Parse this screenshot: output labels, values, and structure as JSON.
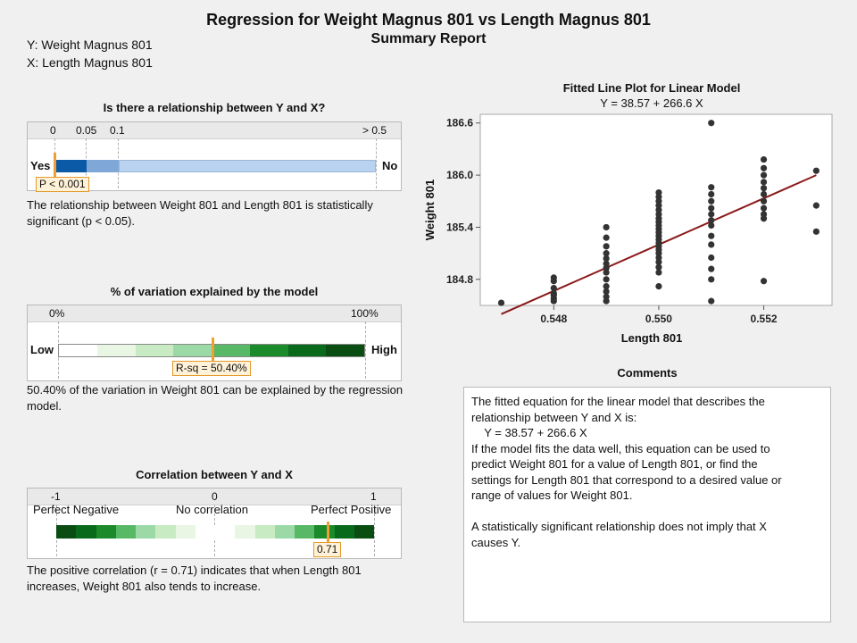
{
  "header": {
    "title": "Regression for Weight Magnus 801 vs Length Magnus 801",
    "subtitle": "Summary Report",
    "y_label": "Y: Weight Magnus 801",
    "x_label": "X: Length Magnus 801"
  },
  "relationship": {
    "title": "Is there a relationship between Y and X?",
    "ticks": [
      "0",
      "0.05",
      "0.1",
      "> 0.5"
    ],
    "left_label": "Yes",
    "right_label": "No",
    "callout": "P < 0.001",
    "p_value": 0.001,
    "colors": [
      "#0b5aa8",
      "#7fa8d8",
      "#b8d2ef"
    ],
    "description": "The relationship between Weight 801 and Length 801 is statistically significant (p < 0.05)."
  },
  "variation": {
    "title": "% of variation explained by the model",
    "ticks": [
      "0%",
      "100%"
    ],
    "left_label": "Low",
    "right_label": "High",
    "callout": "R-sq = 50.40%",
    "r_sq_percent": 50.4,
    "colors": [
      "#ffffff",
      "#e9f6e3",
      "#c8ebc4",
      "#9bdaa6",
      "#57b866",
      "#1a8a2a",
      "#0a6a1c",
      "#0a4d12"
    ],
    "description": "50.40% of the variation in Weight 801 can be explained by the regression model."
  },
  "correlation": {
    "title": "Correlation between Y and X",
    "ticks": [
      "-1",
      "0",
      "1"
    ],
    "labels": [
      "Perfect Negative",
      "No correlation",
      "Perfect Positive"
    ],
    "callout": "0.71",
    "r": 0.71,
    "colors": [
      "#0a4d12",
      "#0a6a1c",
      "#1a8a2a",
      "#57b866",
      "#9bdaa6",
      "#c8ebc4",
      "#e9f6e3",
      "#ffffff"
    ],
    "description": "The positive correlation (r = 0.71) indicates that when Length 801 increases, Weight 801 also tends to increase."
  },
  "plot": {
    "title": "Fitted Line Plot for Linear Model",
    "equation": "Y = 38.57 + 266.6 X",
    "line_color": "#8b1a1a",
    "point_color": "#333333"
  },
  "chart_data": {
    "type": "scatter",
    "title": "Fitted Line Plot for Linear Model",
    "subtitle": "Y = 38.57 + 266.6 X",
    "xlabel": "Length 801",
    "ylabel": "Weight 801",
    "xlim": [
      0.5466,
      0.5533
    ],
    "ylim": [
      184.5,
      186.7
    ],
    "xticks": [
      "0.548",
      "0.550",
      "0.552"
    ],
    "yticks": [
      "184.8",
      "185.4",
      "186.0",
      "186.6"
    ],
    "grid": false,
    "fit": {
      "intercept": 38.57,
      "slope": 266.6
    },
    "points": [
      [
        0.547,
        184.53
      ],
      [
        0.548,
        184.55
      ],
      [
        0.548,
        184.58
      ],
      [
        0.548,
        184.62
      ],
      [
        0.548,
        184.64
      ],
      [
        0.548,
        184.7
      ],
      [
        0.548,
        184.78
      ],
      [
        0.548,
        184.82
      ],
      [
        0.549,
        184.55
      ],
      [
        0.549,
        184.6
      ],
      [
        0.549,
        184.66
      ],
      [
        0.549,
        184.72
      ],
      [
        0.549,
        184.8
      ],
      [
        0.549,
        184.88
      ],
      [
        0.549,
        184.93
      ],
      [
        0.549,
        184.98
      ],
      [
        0.549,
        185.04
      ],
      [
        0.549,
        185.1
      ],
      [
        0.549,
        185.18
      ],
      [
        0.549,
        185.28
      ],
      [
        0.549,
        185.4
      ],
      [
        0.55,
        184.72
      ],
      [
        0.55,
        184.88
      ],
      [
        0.55,
        184.94
      ],
      [
        0.55,
        185.0
      ],
      [
        0.55,
        185.05
      ],
      [
        0.55,
        185.1
      ],
      [
        0.55,
        185.14
      ],
      [
        0.55,
        185.18
      ],
      [
        0.55,
        185.22
      ],
      [
        0.55,
        185.26
      ],
      [
        0.55,
        185.3
      ],
      [
        0.55,
        185.34
      ],
      [
        0.55,
        185.38
      ],
      [
        0.55,
        185.42
      ],
      [
        0.55,
        185.46
      ],
      [
        0.55,
        185.5
      ],
      [
        0.55,
        185.55
      ],
      [
        0.55,
        185.6
      ],
      [
        0.55,
        185.65
      ],
      [
        0.55,
        185.7
      ],
      [
        0.55,
        185.75
      ],
      [
        0.55,
        185.8
      ],
      [
        0.551,
        184.55
      ],
      [
        0.551,
        184.8
      ],
      [
        0.551,
        184.92
      ],
      [
        0.551,
        185.05
      ],
      [
        0.551,
        185.2
      ],
      [
        0.551,
        185.3
      ],
      [
        0.551,
        185.42
      ],
      [
        0.551,
        185.48
      ],
      [
        0.551,
        185.55
      ],
      [
        0.551,
        185.62
      ],
      [
        0.551,
        185.7
      ],
      [
        0.551,
        185.78
      ],
      [
        0.551,
        185.86
      ],
      [
        0.551,
        186.6
      ],
      [
        0.552,
        184.78
      ],
      [
        0.552,
        185.5
      ],
      [
        0.552,
        185.55
      ],
      [
        0.552,
        185.62
      ],
      [
        0.552,
        185.7
      ],
      [
        0.552,
        185.78
      ],
      [
        0.552,
        185.85
      ],
      [
        0.552,
        185.92
      ],
      [
        0.552,
        186.0
      ],
      [
        0.552,
        186.08
      ],
      [
        0.552,
        186.18
      ],
      [
        0.553,
        185.35
      ],
      [
        0.553,
        185.65
      ],
      [
        0.553,
        186.05
      ]
    ]
  },
  "comments": {
    "title": "Comments",
    "lines": [
      "The fitted equation for the linear model that describes the",
      "relationship between Y and X is:",
      "    Y = 38.57 + 266.6 X",
      "If the model fits the data well, this equation can be used to",
      "predict Weight 801 for a value of Length 801, or find the",
      "settings for Length 801 that correspond to a desired value or",
      "range of values for Weight 801.",
      "",
      "A statistically significant relationship does not imply that X",
      "causes Y."
    ]
  }
}
